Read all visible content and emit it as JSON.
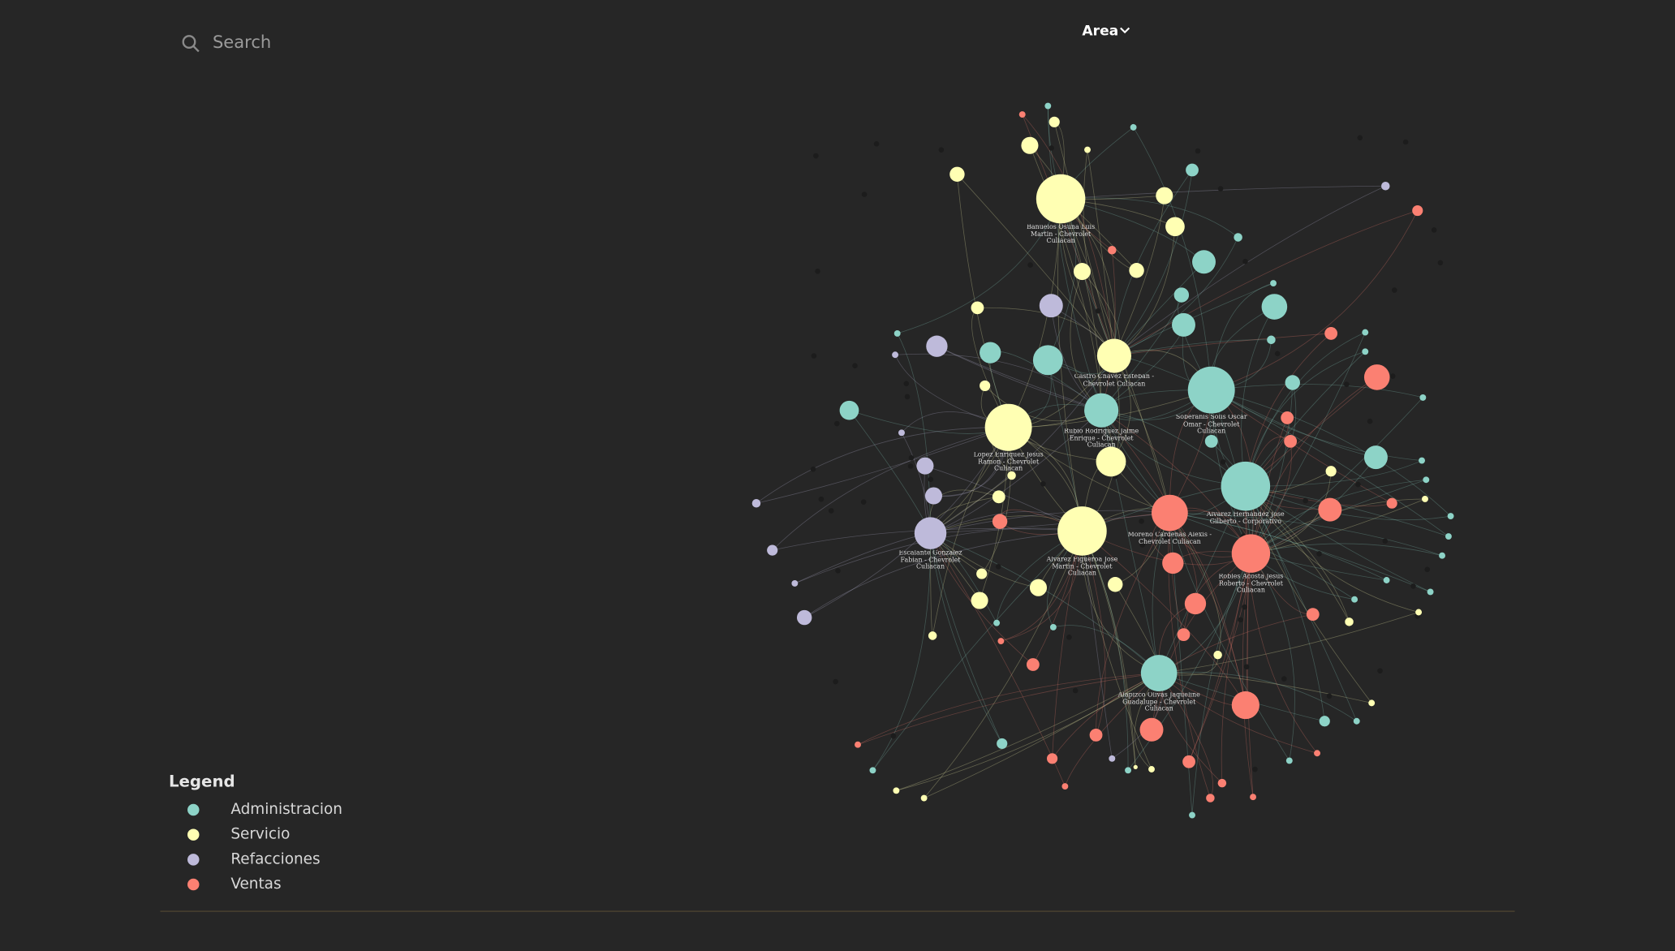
{
  "search": {
    "placeholder": "Search"
  },
  "toolbar": {
    "group_by": "Area"
  },
  "legend": {
    "title": "Legend",
    "items": [
      {
        "label": "Administracion",
        "color": "#8dd3c7"
      },
      {
        "label": "Servicio",
        "color": "#ffffb3"
      },
      {
        "label": "Refacciones",
        "color": "#bebada"
      },
      {
        "label": "Ventas",
        "color": "#fb8072"
      }
    ]
  },
  "graph": {
    "nodes": [
      {
        "label": "Banuelos Osuna Luis Martin - Chevrolet Culiacan",
        "area": "Servicio"
      },
      {
        "label": "Castro Chavez Esteban - Chevrolet Culiacan",
        "area": "Servicio"
      },
      {
        "label": "Soberanis Solis Oscar Omar - Chevrolet Culiacan",
        "area": "Administracion"
      },
      {
        "label": "Rubio Rodriguez Jaime Enrique - Chevrolet Culiacan",
        "area": "Administracion"
      },
      {
        "label": "Lopez Enriquez Jesus Ramon - Chevrolet Culiacan",
        "area": "Servicio"
      },
      {
        "label": "Alvarez Hernandez Jose Gilberto - Corporativo",
        "area": "Administracion"
      },
      {
        "label": "Moreno Cardenas Alexis - Chevrolet Culiacan",
        "area": "Ventas"
      },
      {
        "label": "Alvarez Figueroa Jose Martin - Chevrolet Culiacan",
        "area": "Servicio"
      },
      {
        "label": "Escalante Gonzalez Fabian - Chevrolet Culiacan",
        "area": "Refacciones"
      },
      {
        "label": "Robles Acosta Jesus Roberto - Chevrolet Culiacan",
        "area": "Ventas"
      },
      {
        "label": "Alapizco Olivas Jaqueline Guadalupe - Chevrolet Culiacan",
        "area": "Administracion"
      }
    ]
  }
}
